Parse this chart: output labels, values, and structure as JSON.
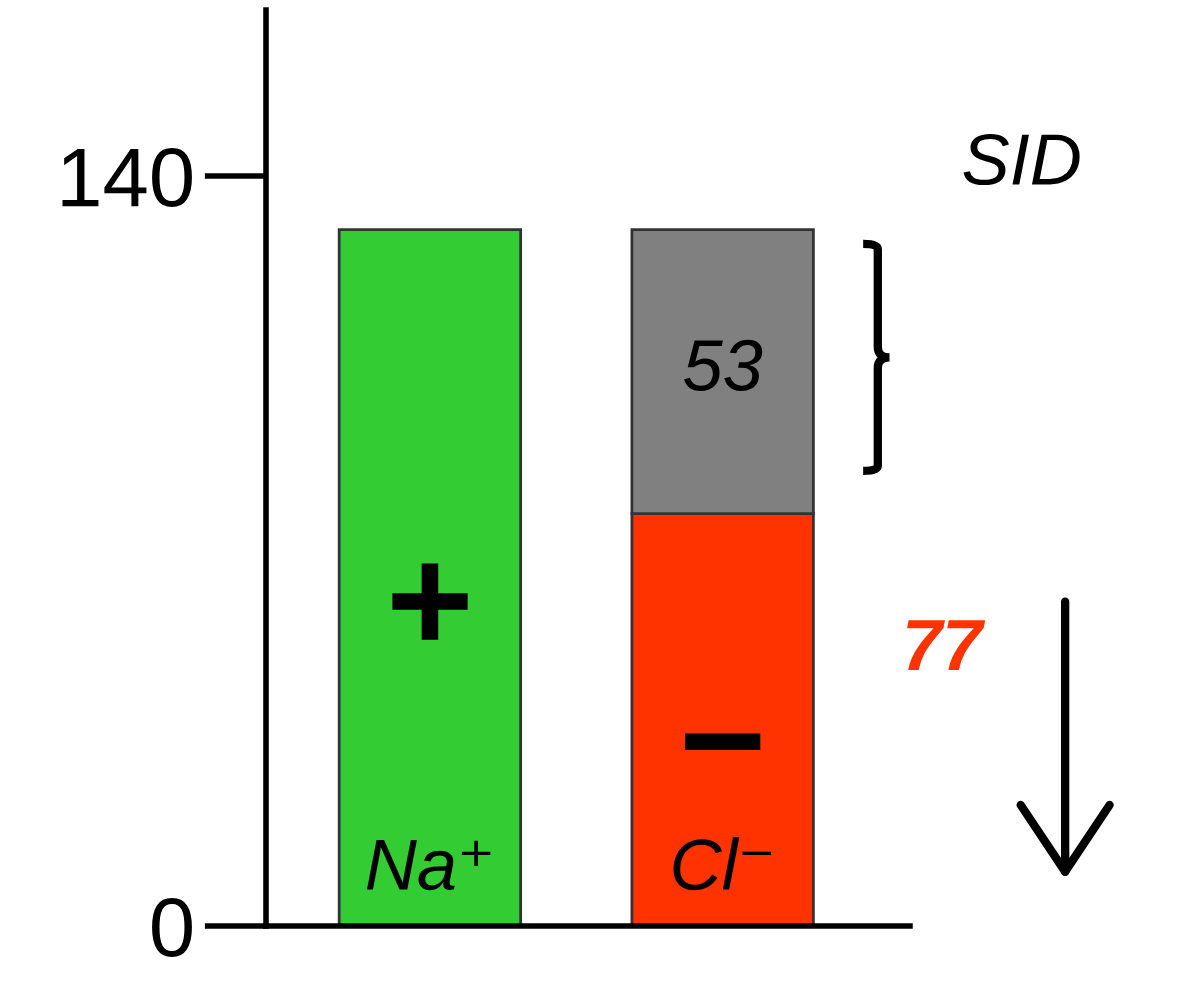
{
  "chart_data": {
    "type": "bar",
    "stacked": true,
    "categories": [
      "Na⁺",
      "Cl⁻"
    ],
    "series": [
      {
        "colors": [
          "#33cc33",
          "#ff3300"
        ],
        "values": [
          130,
          77
        ]
      },
      {
        "color": "#808080",
        "values": [
          null,
          53
        ],
        "value_labels": [
          null,
          "53"
        ]
      }
    ],
    "ylim": [
      0,
      171
    ],
    "yticks": [
      0,
      140
    ],
    "grid": false,
    "annotations": [
      "+",
      "−",
      "SID",
      "77"
    ]
  }
}
